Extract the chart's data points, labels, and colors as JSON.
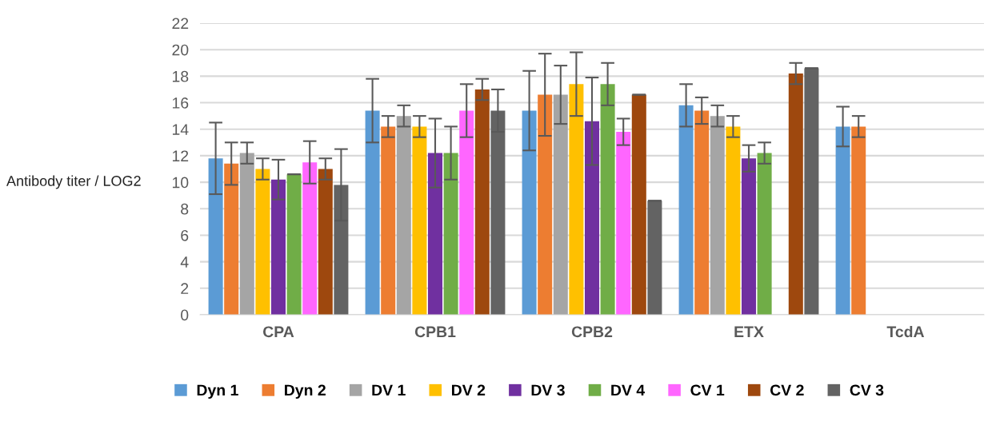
{
  "chart_data": {
    "type": "bar",
    "ylabel": "Antibody titer / LOG2",
    "categories": [
      "CPA",
      "CPB1",
      "CPB2",
      "ETX",
      "TcdA"
    ],
    "series": [
      {
        "name": "Dyn 1",
        "color": "#5b9bd5",
        "values": [
          11.8,
          15.4,
          15.4,
          15.8,
          14.2
        ],
        "errors": [
          2.7,
          2.4,
          3.0,
          1.6,
          1.5
        ]
      },
      {
        "name": "Dyn 2",
        "color": "#ed7d31",
        "values": [
          11.4,
          14.2,
          16.6,
          15.4,
          14.2
        ],
        "errors": [
          1.6,
          0.8,
          3.1,
          1.0,
          0.8
        ]
      },
      {
        "name": "DV 1",
        "color": "#a5a5a5",
        "values": [
          12.2,
          15.0,
          16.6,
          15.0,
          null
        ],
        "errors": [
          0.8,
          0.8,
          2.2,
          0.8,
          null
        ]
      },
      {
        "name": "DV 2",
        "color": "#ffc000",
        "values": [
          11.0,
          14.2,
          17.4,
          14.2,
          null
        ],
        "errors": [
          0.8,
          0.8,
          2.4,
          0.8,
          null
        ]
      },
      {
        "name": "DV 3",
        "color": "#7030a0",
        "values": [
          10.2,
          12.2,
          14.6,
          11.8,
          null
        ],
        "errors": [
          1.5,
          2.6,
          3.3,
          1.0,
          null
        ]
      },
      {
        "name": "DV 4",
        "color": "#70ad47",
        "values": [
          10.6,
          12.2,
          17.4,
          12.2,
          null
        ],
        "errors": [
          0,
          2.0,
          1.6,
          0.8,
          null
        ]
      },
      {
        "name": "CV 1",
        "color": "#ff66ff",
        "values": [
          11.5,
          15.4,
          13.8,
          null,
          null
        ],
        "errors": [
          1.6,
          2.0,
          1.0,
          null,
          null
        ]
      },
      {
        "name": "CV 2",
        "color": "#9e480e",
        "values": [
          11.0,
          17.0,
          16.6,
          18.2,
          null
        ],
        "errors": [
          0.8,
          0.8,
          0,
          0.8,
          null
        ]
      },
      {
        "name": "CV 3",
        "color": "#636363",
        "values": [
          9.8,
          15.4,
          8.6,
          18.6,
          null
        ],
        "errors": [
          2.7,
          1.6,
          0,
          0,
          null
        ]
      }
    ],
    "ylim": [
      0,
      22
    ],
    "yticks": [
      0,
      2,
      4,
      6,
      8,
      10,
      12,
      14,
      16,
      18,
      20,
      22
    ],
    "grid": "y",
    "legend": "bottom"
  }
}
